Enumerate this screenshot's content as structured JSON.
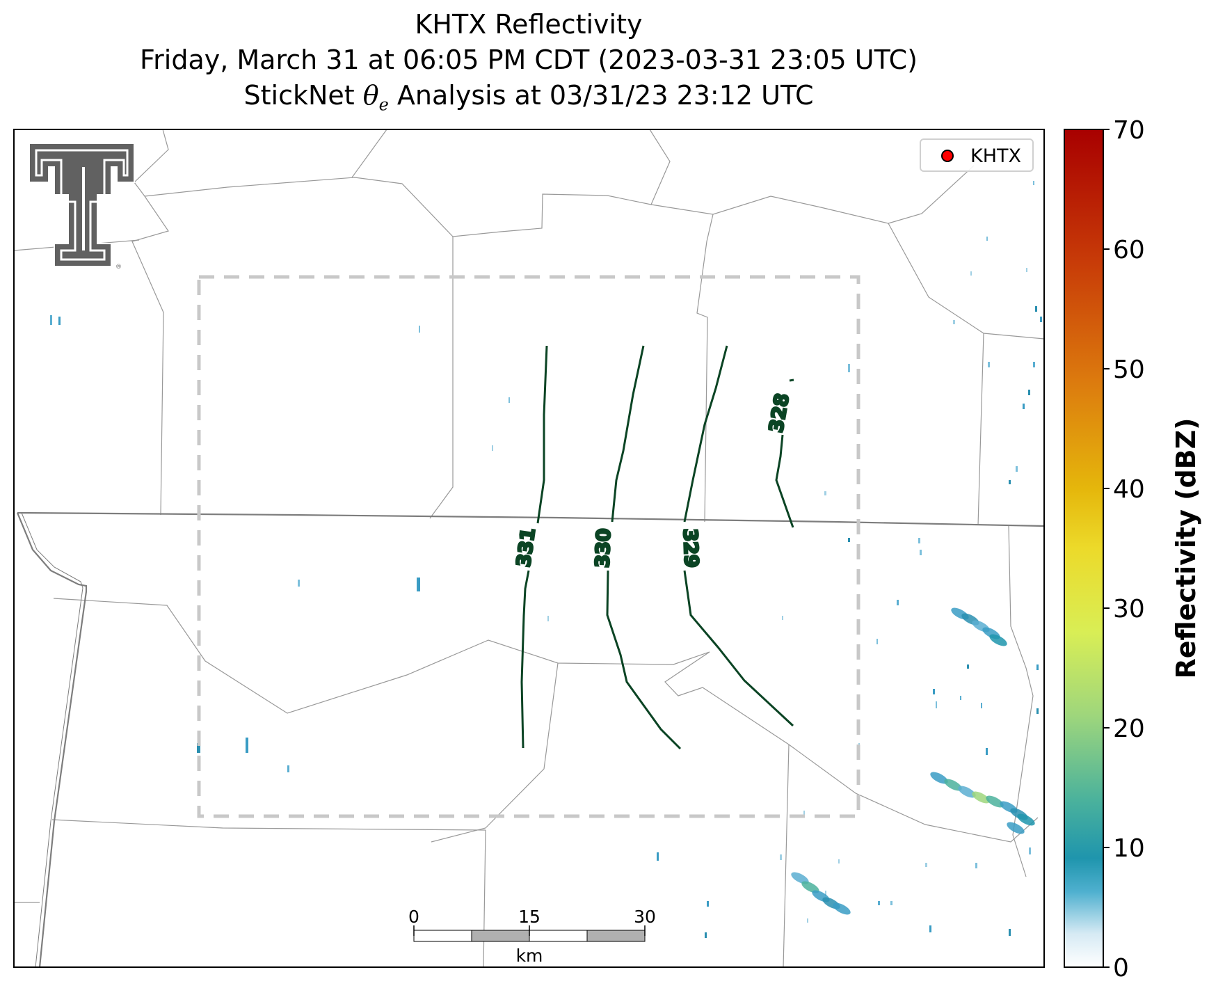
{
  "title": {
    "line1": "KHTX Reflectivity",
    "line2": "Friday, March 31 at 06:05 PM CDT (2023-03-31 23:05 UTC)",
    "line3_prefix": "StickNet ",
    "line3_symbol": "θ",
    "line3_subscript": "e",
    "line3_suffix": " Analysis at 03/31/23 23:12 UTC"
  },
  "legend": {
    "station_label": "KHTX",
    "marker_color": "#ff0000"
  },
  "colorbar": {
    "label": "Reflectivity (dBZ)",
    "min": 0,
    "max": 70,
    "ticks": [
      "0",
      "10",
      "20",
      "30",
      "40",
      "50",
      "60",
      "70"
    ]
  },
  "scale_bar": {
    "ticks": [
      "0",
      "15",
      "30"
    ],
    "unit": "km"
  },
  "contours": [
    {
      "value": 331,
      "label": "331"
    },
    {
      "value": 330,
      "label": "330"
    },
    {
      "value": 329,
      "label": "329"
    },
    {
      "value": 328,
      "label": "328"
    }
  ],
  "colors": {
    "contour": "#0b4424",
    "dashed_box": "#c8c8c8",
    "county_lines": "#999999",
    "state_line": "#777777",
    "logo": "#616161"
  }
}
